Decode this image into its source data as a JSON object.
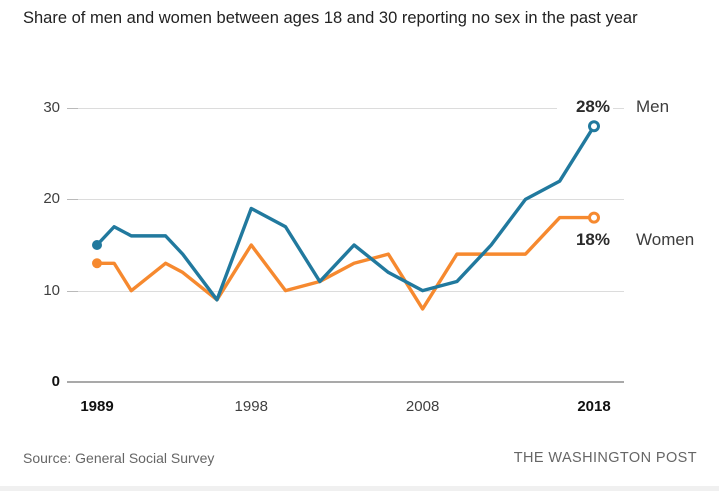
{
  "title": "Share of men and women between ages 18 and 30 reporting no sex in the past year",
  "footer": {
    "source": "Source: General Social Survey",
    "credit": "THE WASHINGTON POST"
  },
  "colors": {
    "men": "#21799E",
    "women": "#F6892F",
    "gridline": "#DCDCDC",
    "tick_stub": "#B9B9B9",
    "zero_axis": "#A9A9A9",
    "title_text": "#222222",
    "axis_text": "#404040",
    "axis_text_bold": "#111111",
    "annotation_value_text": "#2B2B2B",
    "annotation_name_text": "#3D3D3D",
    "footer_text": "#666666"
  },
  "chart_data": {
    "type": "line",
    "x": [
      1989,
      1990,
      1991,
      1993,
      1994,
      1996,
      1998,
      2000,
      2002,
      2004,
      2006,
      2008,
      2010,
      2012,
      2014,
      2016,
      2018
    ],
    "series": [
      {
        "name": "Men",
        "color": "#21799E",
        "values": [
          15,
          17,
          16,
          16,
          14,
          9,
          19,
          17,
          11,
          15,
          12,
          10,
          11,
          15,
          20,
          22,
          28
        ],
        "end_value_label": "28%",
        "start_marker": "filled-dot",
        "end_marker": "open-dot"
      },
      {
        "name": "Women",
        "color": "#F6892F",
        "values": [
          13,
          13,
          10,
          13,
          12,
          9,
          15,
          10,
          11,
          13,
          14,
          8,
          14,
          14,
          14,
          18,
          18
        ],
        "end_value_label": "18%",
        "start_marker": "filled-dot",
        "end_marker": "open-dot"
      }
    ],
    "xlim": [
      1989,
      2018
    ],
    "ylim": [
      0,
      30
    ],
    "y_ticks": [
      {
        "value": 30,
        "label": "30",
        "bold": false
      },
      {
        "value": 20,
        "label": "20",
        "bold": false
      },
      {
        "value": 10,
        "label": "10",
        "bold": false
      },
      {
        "value": 0,
        "label": "0",
        "bold": true
      }
    ],
    "x_ticks": [
      {
        "value": 1989,
        "label": "1989",
        "bold": true
      },
      {
        "value": 1998,
        "label": "1998",
        "bold": false
      },
      {
        "value": 2008,
        "label": "2008",
        "bold": false
      },
      {
        "value": 2018,
        "label": "2018",
        "bold": true
      }
    ],
    "grid": "horizontal",
    "legend_position": "end-of-line"
  }
}
